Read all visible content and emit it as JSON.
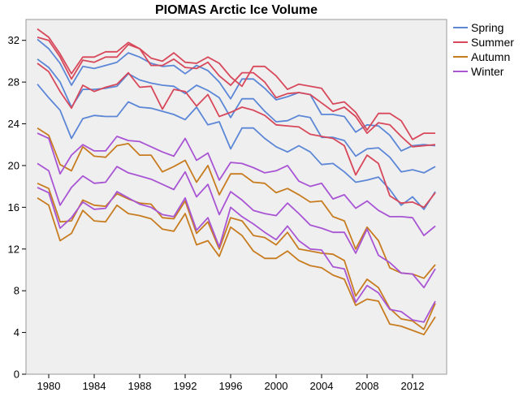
{
  "chart_data": {
    "type": "line",
    "title": "PIOMAS Arctic Ice Volume",
    "xlabel": "",
    "ylabel": "",
    "xlim": [
      1978,
      2015
    ],
    "ylim": [
      0,
      34
    ],
    "x_ticks": [
      1980,
      1984,
      1988,
      1992,
      1996,
      2000,
      2004,
      2008,
      2012
    ],
    "y_ticks": [
      0,
      4,
      8,
      12,
      16,
      20,
      24,
      28,
      32
    ],
    "grid": false,
    "legend": "right",
    "x": [
      1979,
      1980,
      1981,
      1982,
      1983,
      1984,
      1985,
      1986,
      1987,
      1988,
      1989,
      1990,
      1991,
      1992,
      1993,
      1994,
      1995,
      1996,
      1997,
      1998,
      1999,
      2000,
      2001,
      2002,
      2003,
      2004,
      2005,
      2006,
      2007,
      2008,
      2009,
      2010,
      2011,
      2012,
      2013,
      2014
    ],
    "series": [
      {
        "name": "Spring",
        "color": "#5b87d6",
        "lines": [
          [
            32.1,
            31.2,
            29.8,
            27.7,
            29.5,
            29.3,
            29.6,
            29.9,
            30.8,
            30.4,
            29.8,
            29.5,
            29.6,
            28.8,
            29.6,
            29.1,
            28.0,
            26.4,
            28.3,
            28.3,
            27.4,
            26.3,
            26.6,
            27.0,
            26.8,
            24.9,
            24.9,
            24.7,
            23.2,
            23.9,
            23.8,
            22.9,
            21.4,
            21.9,
            22.0,
            21.9
          ],
          [
            30.2,
            29.4,
            28.0,
            25.6,
            27.3,
            27.3,
            27.4,
            27.6,
            28.8,
            28.2,
            27.9,
            27.7,
            27.6,
            26.9,
            27.7,
            27.2,
            26.5,
            24.6,
            26.4,
            26.4,
            25.2,
            24.2,
            24.3,
            24.8,
            24.6,
            22.7,
            22.7,
            22.4,
            20.9,
            21.6,
            21.7,
            20.8,
            19.4,
            19.6,
            19.3,
            19.9
          ],
          [
            27.8,
            26.5,
            25.3,
            22.6,
            24.5,
            24.8,
            24.7,
            24.7,
            26.1,
            25.6,
            25.5,
            25.2,
            24.9,
            24.4,
            25.6,
            23.9,
            24.2,
            21.6,
            23.6,
            23.6,
            22.6,
            21.8,
            21.3,
            21.9,
            21.3,
            20.1,
            20.2,
            19.4,
            18.4,
            18.6,
            18.9,
            17.7,
            16.2,
            17.0,
            15.8,
            17.5
          ]
        ]
      },
      {
        "name": "Summer",
        "color": "#d7485a",
        "lines": [
          [
            33.1,
            32.3,
            30.7,
            28.8,
            30.4,
            30.4,
            30.9,
            30.9,
            31.8,
            31.2,
            30.3,
            30.0,
            30.8,
            29.9,
            29.8,
            30.4,
            29.8,
            28.5,
            27.6,
            29.5,
            29.5,
            28.6,
            27.3,
            27.8,
            27.6,
            27.4,
            25.9,
            26.1,
            25.1,
            23.4,
            25.0,
            25.0,
            24.3,
            22.5,
            23.1,
            23.1
          ],
          [
            32.3,
            32.0,
            30.4,
            28.3,
            30.1,
            29.9,
            30.4,
            30.4,
            31.6,
            31.2,
            29.6,
            29.6,
            30.2,
            29.4,
            29.3,
            29.9,
            28.6,
            27.7,
            28.9,
            28.9,
            28.0,
            26.5,
            26.9,
            27.0,
            26.8,
            26.0,
            25.2,
            25.6,
            24.7,
            23.1,
            24.1,
            23.9,
            22.8,
            21.8,
            21.9,
            22.0
          ],
          [
            29.8,
            29.0,
            27.1,
            25.5,
            27.7,
            27.1,
            27.5,
            27.8,
            28.9,
            27.5,
            27.6,
            25.4,
            27.3,
            27.1,
            25.7,
            26.8,
            24.7,
            25.1,
            25.6,
            25.3,
            24.8,
            23.9,
            23.8,
            23.7,
            23.0,
            22.8,
            22.6,
            21.9,
            19.1,
            21.0,
            20.2,
            17.1,
            16.4,
            16.5,
            16.0,
            17.4
          ]
        ]
      },
      {
        "name": "Autumn",
        "color": "#c77c1f",
        "lines": [
          [
            23.6,
            22.9,
            20.1,
            19.5,
            21.8,
            20.9,
            20.8,
            21.9,
            22.1,
            21.0,
            21.0,
            19.4,
            19.9,
            20.5,
            18.4,
            20.0,
            17.2,
            19.2,
            19.2,
            18.4,
            18.3,
            17.4,
            17.8,
            17.2,
            16.5,
            16.6,
            15.1,
            14.7,
            12.0,
            14.1,
            12.8,
            10.2,
            9.7,
            9.6,
            9.2,
            10.5
          ],
          [
            18.3,
            17.8,
            14.6,
            14.7,
            16.7,
            16.2,
            16.1,
            17.3,
            16.8,
            16.4,
            16.3,
            15.0,
            14.9,
            16.6,
            13.5,
            14.6,
            12.0,
            15.0,
            14.7,
            13.3,
            13.1,
            12.4,
            13.6,
            12.0,
            11.8,
            11.6,
            11.5,
            10.9,
            7.5,
            9.1,
            8.3,
            6.3,
            5.3,
            5.1,
            4.3,
            6.8
          ],
          [
            16.9,
            16.2,
            12.8,
            13.5,
            15.7,
            14.7,
            14.6,
            16.2,
            15.4,
            15.2,
            14.9,
            13.9,
            13.7,
            15.4,
            12.4,
            12.8,
            11.3,
            14.1,
            13.3,
            11.8,
            11.1,
            11.1,
            11.8,
            10.9,
            10.4,
            10.2,
            9.5,
            9.1,
            6.6,
            7.2,
            7.0,
            4.8,
            4.6,
            4.2,
            3.8,
            5.5
          ]
        ]
      },
      {
        "name": "Winter",
        "color": "#a855d4",
        "lines": [
          [
            23.1,
            22.6,
            19.2,
            21.0,
            22.0,
            21.4,
            21.4,
            22.8,
            22.4,
            22.3,
            21.8,
            21.3,
            20.9,
            22.6,
            20.5,
            21.2,
            18.6,
            20.3,
            20.2,
            19.8,
            19.3,
            19.5,
            20.0,
            18.5,
            18.0,
            18.3,
            16.8,
            17.2,
            15.9,
            16.6,
            15.7,
            15.1,
            15.1,
            15.0,
            13.3,
            14.2
          ],
          [
            20.2,
            19.5,
            16.2,
            17.9,
            19.0,
            18.3,
            18.4,
            19.9,
            19.3,
            19.0,
            18.7,
            18.2,
            17.7,
            19.4,
            17.0,
            18.2,
            15.3,
            17.5,
            16.7,
            15.7,
            15.4,
            15.2,
            16.4,
            15.4,
            14.3,
            14.0,
            13.6,
            13.6,
            11.6,
            13.9,
            11.4,
            10.7,
            9.7,
            9.6,
            8.3,
            10.1
          ],
          [
            17.9,
            17.4,
            14.0,
            15.0,
            16.5,
            15.8,
            15.9,
            17.5,
            16.9,
            16.3,
            16.0,
            15.3,
            15.1,
            16.9,
            13.8,
            15.0,
            12.2,
            16.0,
            15.1,
            14.4,
            13.6,
            12.9,
            14.2,
            12.8,
            12.0,
            11.9,
            10.3,
            10.1,
            6.9,
            8.5,
            7.8,
            6.2,
            6.0,
            5.2,
            5.0,
            7.0
          ]
        ]
      }
    ]
  }
}
